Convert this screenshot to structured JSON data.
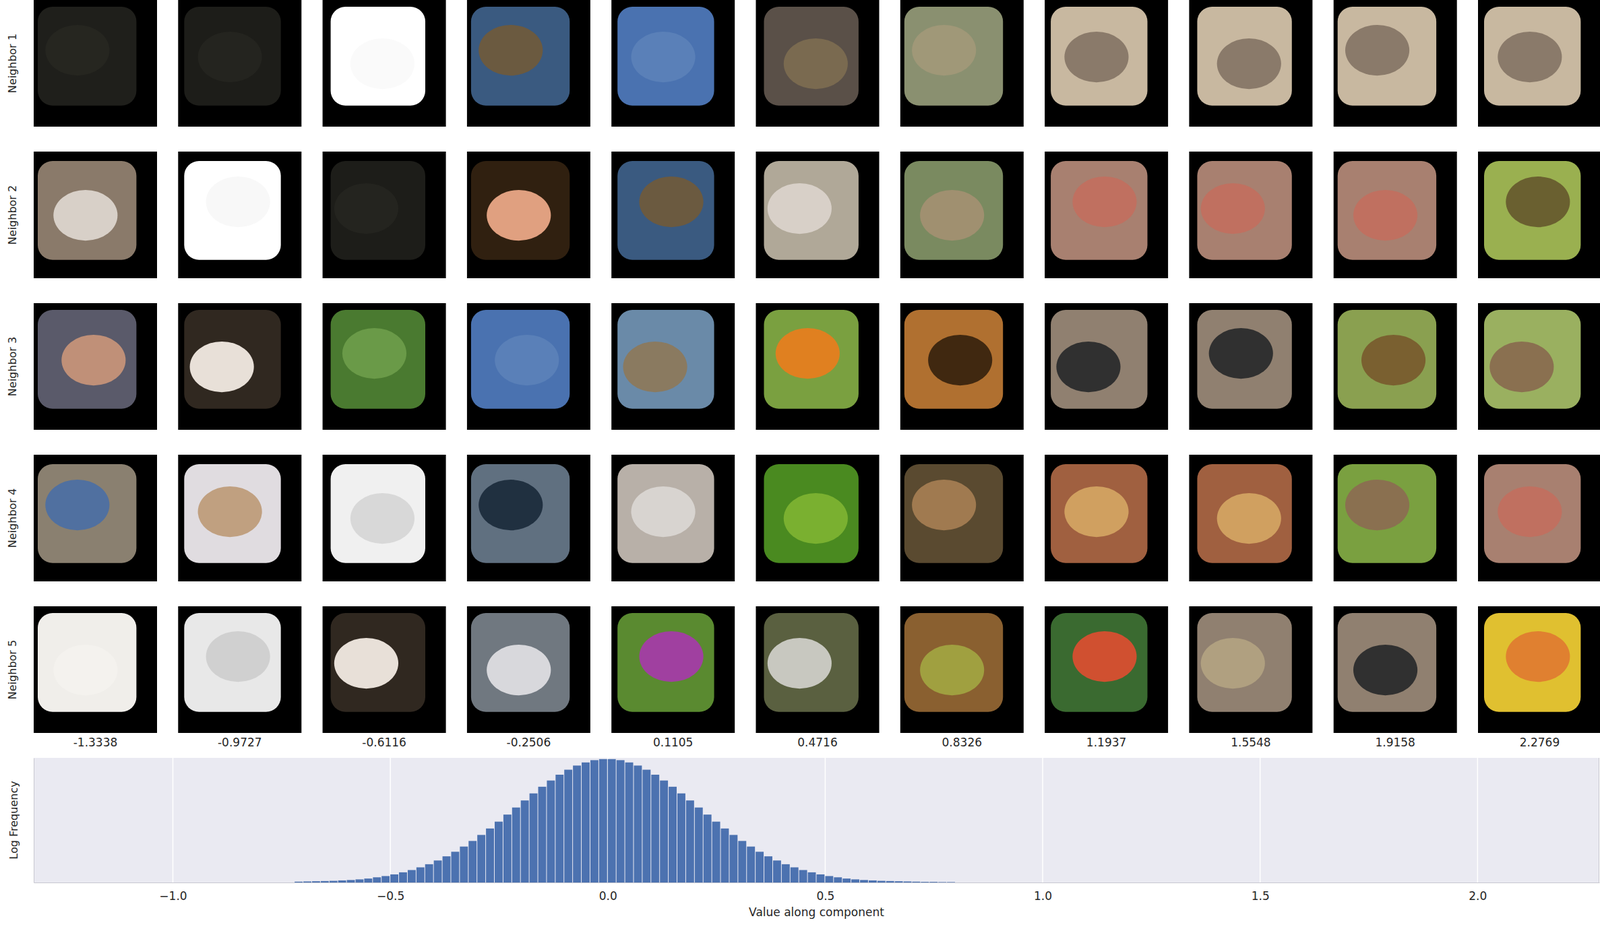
{
  "grid": {
    "row_labels": [
      "Neighbor 1",
      "Neighbor 2",
      "Neighbor 3",
      "Neighbor 4",
      "Neighbor 5"
    ],
    "column_values": [
      -1.3338,
      -0.9727,
      -0.6116,
      -0.2506,
      0.1105,
      0.4716,
      0.8326,
      1.1937,
      1.5548,
      1.9158,
      2.2769
    ]
  },
  "chart_data": {
    "type": "histogram",
    "xlabel": "Value along component",
    "ylabel": "Log Frequency",
    "bins": [
      -0.72,
      -0.7,
      -0.68,
      -0.66,
      -0.64,
      -0.62,
      -0.6,
      -0.58,
      -0.56,
      -0.54,
      -0.52,
      -0.5,
      -0.48,
      -0.46,
      -0.44,
      -0.42,
      -0.4,
      -0.38,
      -0.36,
      -0.34,
      -0.32,
      -0.3,
      -0.28,
      -0.26,
      -0.24,
      -0.22,
      -0.2,
      -0.18,
      -0.16,
      -0.14,
      -0.12,
      -0.1,
      -0.08,
      -0.06,
      -0.04,
      -0.02,
      0,
      0.02,
      0.04,
      0.06,
      0.08,
      0.1,
      0.12,
      0.14,
      0.16,
      0.18,
      0.2,
      0.22,
      0.24,
      0.26,
      0.28,
      0.3,
      0.32,
      0.34,
      0.36,
      0.38,
      0.4,
      0.42,
      0.44,
      0.46,
      0.48,
      0.5,
      0.52,
      0.54,
      0.56,
      0.58,
      0.6,
      0.62,
      0.64,
      0.66,
      0.68,
      0.7,
      0.72,
      0.74,
      0.76,
      0.78,
      0.8
    ],
    "values": [
      0.04,
      0.05,
      0.06,
      0.07,
      0.08,
      0.1,
      0.12,
      0.15,
      0.19,
      0.25,
      0.31,
      0.39,
      0.49,
      0.6,
      0.73,
      0.88,
      1.06,
      1.26,
      1.48,
      1.73,
      2.0,
      2.29,
      2.6,
      2.93,
      3.27,
      3.61,
      3.95,
      4.29,
      4.61,
      4.91,
      5.19,
      5.43,
      5.63,
      5.78,
      5.89,
      5.94,
      5.94,
      5.89,
      5.78,
      5.63,
      5.43,
      5.19,
      4.91,
      4.61,
      4.29,
      3.95,
      3.61,
      3.27,
      2.93,
      2.6,
      2.29,
      2.0,
      1.73,
      1.48,
      1.26,
      1.06,
      0.88,
      0.73,
      0.6,
      0.49,
      0.39,
      0.31,
      0.25,
      0.19,
      0.15,
      0.12,
      0.1,
      0.08,
      0.07,
      0.06,
      0.05,
      0.04,
      0.03,
      0.03,
      0.02,
      0.02
    ],
    "color": "#4c72b0",
    "xlim": [
      -1.32,
      2.28
    ],
    "xticks": [
      {
        "value": -1,
        "label": "−1.0"
      },
      {
        "value": -0.5,
        "label": "−0.5"
      },
      {
        "value": 0,
        "label": "0.0"
      },
      0.5,
      {
        "value": 1,
        "label": "1.0"
      },
      1.5,
      {
        "value": 2,
        "label": "2.0"
      }
    ],
    "ylim": [
      0,
      6
    ],
    "grid": true,
    "tick_labels": "x"
  }
}
